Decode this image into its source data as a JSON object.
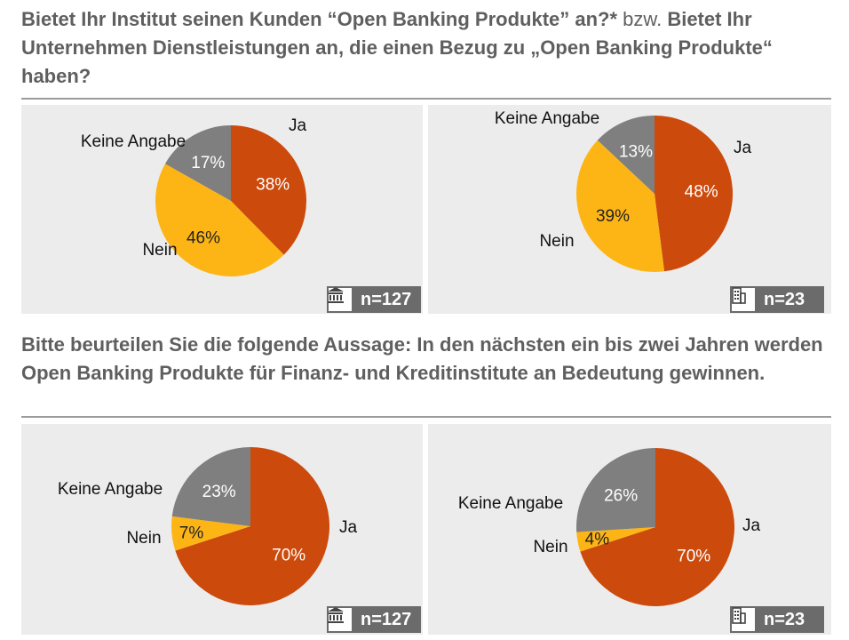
{
  "questions": {
    "q1_bold_a": "Bietet Ihr Institut seinen Kunden “Open Banking Produkte” an?*",
    "q1_normal": " bzw. ",
    "q1_bold_b": "Bietet Ihr Unternehmen Dienstleistungen an, die einen Bezug zu „Open Banking Produkte“ haben?",
    "q2": "Bitte beurteilen Sie die folgende Aussage: In den nächsten ein bis zwei Jahren werden Open Banking Produkte für Finanz- und Kreditinstitute an Bedeutung gewinnen."
  },
  "colors": {
    "ja": "#cc4a0c",
    "nein": "#fdb515",
    "keine": "#7f7f7f",
    "panel": "#ececec",
    "badge": "#6b6b6b"
  },
  "chart_data": [
    {
      "type": "pie",
      "id": "q1-institute",
      "sample": "n=127",
      "sample_icon": "bank-icon",
      "slices": [
        {
          "label": "Ja",
          "value": 38,
          "pct_label": "38%",
          "color": "#cc4a0c"
        },
        {
          "label": "Nein",
          "value": 46,
          "pct_label": "46%",
          "color": "#fdb515"
        },
        {
          "label": "Keine Angabe",
          "value": 17,
          "pct_label": "17%",
          "color": "#7f7f7f"
        }
      ]
    },
    {
      "type": "pie",
      "id": "q1-company",
      "sample": "n=23",
      "sample_icon": "building-icon",
      "slices": [
        {
          "label": "Ja",
          "value": 48,
          "pct_label": "48%",
          "color": "#cc4a0c"
        },
        {
          "label": "Nein",
          "value": 39,
          "pct_label": "39%",
          "color": "#fdb515"
        },
        {
          "label": "Keine Angabe",
          "value": 13,
          "pct_label": "13%",
          "color": "#7f7f7f"
        }
      ]
    },
    {
      "type": "pie",
      "id": "q2-institute",
      "sample": "n=127",
      "sample_icon": "bank-icon",
      "slices": [
        {
          "label": "Ja",
          "value": 70,
          "pct_label": "70%",
          "color": "#cc4a0c"
        },
        {
          "label": "Nein",
          "value": 7,
          "pct_label": "7%",
          "color": "#fdb515"
        },
        {
          "label": "Keine Angabe",
          "value": 23,
          "pct_label": "23%",
          "color": "#7f7f7f"
        }
      ]
    },
    {
      "type": "pie",
      "id": "q2-company",
      "sample": "n=23",
      "sample_icon": "building-icon",
      "slices": [
        {
          "label": "Ja",
          "value": 70,
          "pct_label": "70%",
          "color": "#cc4a0c"
        },
        {
          "label": "Nein",
          "value": 4,
          "pct_label": "4%",
          "color": "#fdb515"
        },
        {
          "label": "Keine Angabe",
          "value": 26,
          "pct_label": "26%",
          "color": "#7f7f7f"
        }
      ]
    }
  ]
}
